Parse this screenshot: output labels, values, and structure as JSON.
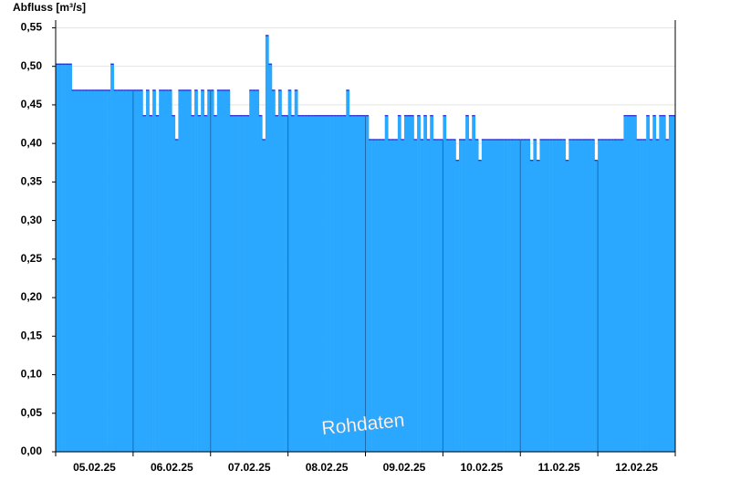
{
  "chart_data": {
    "type": "step-area",
    "ylabel": "Abfluss [m³/s]",
    "annotation": "Rohdaten",
    "color": "#2aa8ff",
    "line_color": "#0000c8",
    "grid": true,
    "ylim": [
      0,
      0.56
    ],
    "yticks": [
      {
        "value": 0,
        "label": "0,00"
      },
      {
        "value": 0.05,
        "label": "0,05"
      },
      {
        "value": 0.1,
        "label": "0,10"
      },
      {
        "value": 0.15,
        "label": "0,15"
      },
      {
        "value": 0.2,
        "label": "0,20"
      },
      {
        "value": 0.25,
        "label": "0,25"
      },
      {
        "value": 0.3,
        "label": "0,30"
      },
      {
        "value": 0.35,
        "label": "0,35"
      },
      {
        "value": 0.4,
        "label": "0,40"
      },
      {
        "value": 0.45,
        "label": "0,45"
      },
      {
        "value": 0.5,
        "label": "0,50"
      },
      {
        "value": 0.55,
        "label": "0,55"
      }
    ],
    "categories": [
      "05.02.25",
      "06.02.25",
      "07.02.25",
      "08.02.25",
      "09.02.25",
      "10.02.25",
      "11.02.25",
      "12.02.25"
    ],
    "values": [
      [
        0.503,
        0.503,
        0.503,
        0.503,
        0.503,
        0.469,
        0.469,
        0.469,
        0.469,
        0.469,
        0.469,
        0.469,
        0.469,
        0.469,
        0.469,
        0.469,
        0.469,
        0.503,
        0.469,
        0.469,
        0.469,
        0.469,
        0.469,
        0.469
      ],
      [
        0.469,
        0.469,
        0.469,
        0.436,
        0.469,
        0.436,
        0.469,
        0.436,
        0.469,
        0.469,
        0.469,
        0.469,
        0.436,
        0.405,
        0.469,
        0.469,
        0.469,
        0.469,
        0.436,
        0.469,
        0.436,
        0.469,
        0.436,
        0.469
      ],
      [
        0.469,
        0.436,
        0.469,
        0.469,
        0.469,
        0.469,
        0.436,
        0.436,
        0.436,
        0.436,
        0.436,
        0.436,
        0.469,
        0.469,
        0.469,
        0.436,
        0.405,
        0.54,
        0.503,
        0.469,
        0.436,
        0.469,
        0.436,
        0.436
      ],
      [
        0.469,
        0.436,
        0.469,
        0.436,
        0.436,
        0.436,
        0.436,
        0.436,
        0.436,
        0.436,
        0.436,
        0.436,
        0.436,
        0.436,
        0.436,
        0.436,
        0.436,
        0.436,
        0.469,
        0.436,
        0.436,
        0.436,
        0.436,
        0.436
      ],
      [
        0.436,
        0.405,
        0.405,
        0.405,
        0.405,
        0.405,
        0.436,
        0.405,
        0.405,
        0.405,
        0.436,
        0.405,
        0.436,
        0.436,
        0.436,
        0.405,
        0.436,
        0.405,
        0.436,
        0.405,
        0.436,
        0.405,
        0.405,
        0.405
      ],
      [
        0.436,
        0.405,
        0.405,
        0.405,
        0.378,
        0.405,
        0.405,
        0.436,
        0.405,
        0.436,
        0.405,
        0.378,
        0.405,
        0.405,
        0.405,
        0.405,
        0.405,
        0.405,
        0.405,
        0.405,
        0.405,
        0.405,
        0.405,
        0.405
      ],
      [
        0.405,
        0.405,
        0.405,
        0.378,
        0.405,
        0.378,
        0.405,
        0.405,
        0.405,
        0.405,
        0.405,
        0.405,
        0.405,
        0.405,
        0.378,
        0.405,
        0.405,
        0.405,
        0.405,
        0.405,
        0.405,
        0.405,
        0.405,
        0.378
      ],
      [
        0.405,
        0.405,
        0.405,
        0.405,
        0.405,
        0.405,
        0.405,
        0.405,
        0.436,
        0.436,
        0.436,
        0.436,
        0.405,
        0.405,
        0.405,
        0.436,
        0.405,
        0.436,
        0.405,
        0.436,
        0.436,
        0.405,
        0.436,
        0.436
      ]
    ]
  }
}
